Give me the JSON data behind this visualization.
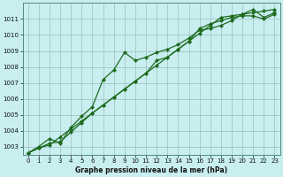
{
  "x": [
    0,
    1,
    2,
    3,
    4,
    5,
    6,
    7,
    8,
    9,
    10,
    11,
    12,
    13,
    14,
    15,
    16,
    17,
    18,
    19,
    20,
    21,
    22,
    23
  ],
  "line1": [
    1002.6,
    1002.9,
    1003.2,
    1003.3,
    1003.9,
    1004.5,
    1005.1,
    1005.6,
    1006.1,
    1006.6,
    1007.1,
    1007.6,
    1008.4,
    1008.6,
    1009.1,
    1009.6,
    1010.4,
    1010.7,
    1010.9,
    1011.1,
    1011.2,
    1011.2,
    1011.0,
    1011.3
  ],
  "line2": [
    1002.6,
    1003.0,
    1003.5,
    1003.2,
    1004.2,
    1004.9,
    1005.5,
    1007.2,
    1007.8,
    1008.9,
    1008.4,
    1008.6,
    1008.9,
    1009.1,
    1009.4,
    1009.8,
    1010.3,
    1010.4,
    1010.6,
    1010.9,
    1011.3,
    1011.6,
    1011.1,
    1011.4
  ],
  "line3": [
    1002.6,
    1002.9,
    1003.1,
    1003.6,
    1004.1,
    1004.6,
    1005.1,
    1005.6,
    1006.1,
    1006.6,
    1007.1,
    1007.6,
    1008.1,
    1008.6,
    1009.1,
    1009.6,
    1010.1,
    1010.6,
    1011.1,
    1011.2,
    1011.3,
    1011.4,
    1011.5,
    1011.6
  ],
  "line_color": "#1e6b1e",
  "bg_color": "#c8eef0",
  "grid_color": "#9bbfbf",
  "title": "Graphe pression niveau de la mer (hPa)",
  "ylim": [
    1002.5,
    1012.0
  ],
  "xlim": [
    -0.5,
    23.5
  ],
  "yticks": [
    1003,
    1004,
    1005,
    1006,
    1007,
    1008,
    1009,
    1010,
    1011
  ],
  "xticks": [
    0,
    1,
    2,
    3,
    4,
    5,
    6,
    7,
    8,
    9,
    10,
    11,
    12,
    13,
    14,
    15,
    16,
    17,
    18,
    19,
    20,
    21,
    22,
    23
  ],
  "marker_size": 2.2,
  "linewidth": 0.9,
  "tick_fontsize": 5.0,
  "label_fontsize": 5.5
}
